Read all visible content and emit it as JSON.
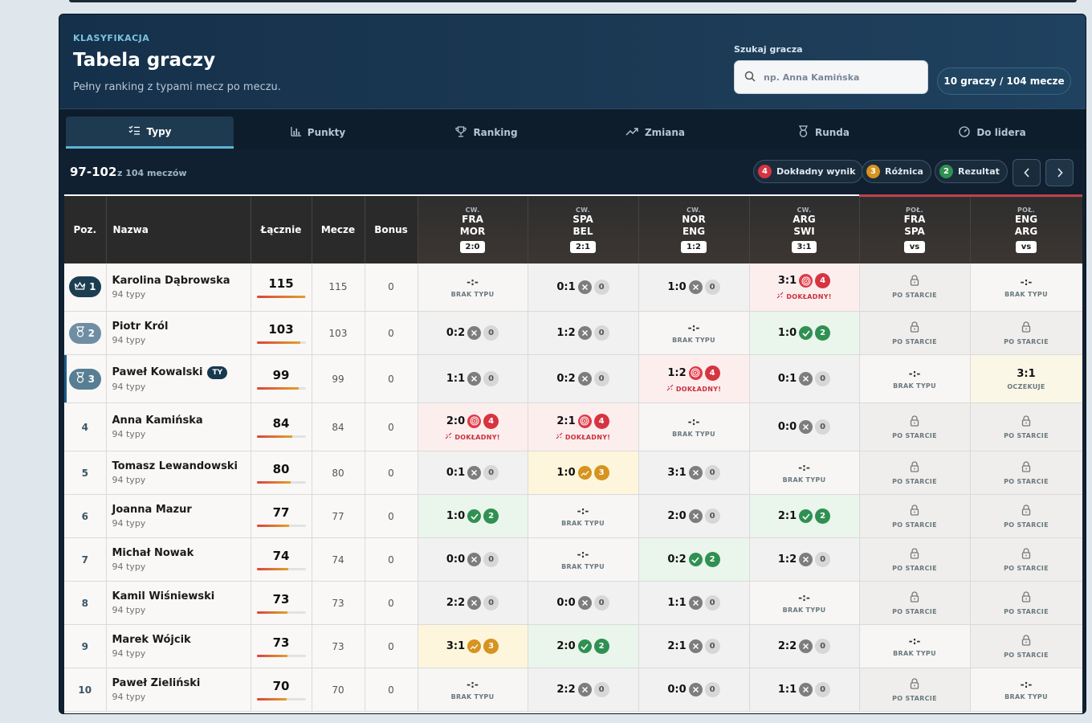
{
  "header": {
    "eyebrow": "KLASYFIKACJA",
    "title": "Tabela graczy",
    "subtitle": "Pełny ranking z typami mecz po meczu.",
    "search_label": "Szukaj gracza",
    "search_placeholder": "np. Anna Kamińska",
    "count_pill": "10 graczy / 104 mecze"
  },
  "tabs": [
    {
      "label": "Typy",
      "icon": "list-check-icon",
      "active": true
    },
    {
      "label": "Punkty",
      "icon": "bar-chart-icon",
      "active": false
    },
    {
      "label": "Ranking",
      "icon": "trophy-icon",
      "active": false
    },
    {
      "label": "Zmiana",
      "icon": "trend-icon",
      "active": false
    },
    {
      "label": "Runda",
      "icon": "medal-icon",
      "active": false
    },
    {
      "label": "Do lidera",
      "icon": "gauge-icon",
      "active": false
    }
  ],
  "range": {
    "value": "97-102",
    "suffix": "z 104 meczów"
  },
  "legend": [
    {
      "num": "4",
      "label": "Dokładny wynik",
      "color": "#d63441"
    },
    {
      "num": "3",
      "label": "Różnica",
      "color": "#d69320"
    },
    {
      "num": "2",
      "label": "Rezultat",
      "color": "#2f9052"
    }
  ],
  "columns": {
    "pos": "Poz.",
    "name": "Nazwa",
    "total": "Łącznie",
    "matches": "Mecze",
    "bonus": "Bonus"
  },
  "matches": [
    {
      "stage": "CW.",
      "home": "FRA",
      "away": "MOR",
      "score": "2:0",
      "half": false
    },
    {
      "stage": "CW.",
      "home": "SPA",
      "away": "BEL",
      "score": "2:1",
      "half": false
    },
    {
      "stage": "CW.",
      "home": "NOR",
      "away": "ENG",
      "score": "1:2",
      "half": false
    },
    {
      "stage": "CW.",
      "home": "ARG",
      "away": "SWI",
      "score": "3:1",
      "half": false
    },
    {
      "stage": "POŁ.",
      "home": "FRA",
      "away": "SPA",
      "score": "vs",
      "half": true
    },
    {
      "stage": "POŁ.",
      "home": "ENG",
      "away": "ARG",
      "score": "vs",
      "half": true
    }
  ],
  "labels": {
    "no_pick": "-:-",
    "no_pick_sub": "BRAK TYPU",
    "exact_sub": "DOKŁADNY!",
    "locked_sub": "PO STARCIE",
    "pending_sub": "OCZEKUJE"
  },
  "players": [
    {
      "pos": "1",
      "medal": "gold",
      "name": "Karolina Dąbrowska",
      "sub": "94 typy",
      "total": "115",
      "matches": "115",
      "bonus": "0",
      "bar": 0.99,
      "you": false,
      "picks": [
        {
          "t": "none"
        },
        {
          "t": "miss",
          "p": "0:1",
          "pts": "0"
        },
        {
          "t": "miss",
          "p": "1:0",
          "pts": "0"
        },
        {
          "t": "exact",
          "p": "3:1",
          "pts": "4"
        },
        {
          "t": "locked"
        },
        {
          "t": "none"
        }
      ]
    },
    {
      "pos": "2",
      "medal": "silver",
      "name": "Piotr Król",
      "sub": "94 typy",
      "total": "103",
      "matches": "103",
      "bonus": "0",
      "bar": 0.89,
      "you": false,
      "picks": [
        {
          "t": "miss",
          "p": "0:2",
          "pts": "0"
        },
        {
          "t": "miss",
          "p": "1:2",
          "pts": "0"
        },
        {
          "t": "none"
        },
        {
          "t": "res",
          "p": "1:0",
          "pts": "2"
        },
        {
          "t": "locked"
        },
        {
          "t": "locked"
        }
      ]
    },
    {
      "pos": "3",
      "medal": "bronze",
      "name": "Paweł Kowalski",
      "sub": "94 typy",
      "total": "99",
      "matches": "99",
      "bonus": "0",
      "bar": 0.86,
      "you": true,
      "you_label": "TY",
      "picks": [
        {
          "t": "miss",
          "p": "1:1",
          "pts": "0"
        },
        {
          "t": "miss",
          "p": "0:2",
          "pts": "0"
        },
        {
          "t": "exact",
          "p": "1:2",
          "pts": "4"
        },
        {
          "t": "miss",
          "p": "0:1",
          "pts": "0"
        },
        {
          "t": "none"
        },
        {
          "t": "pending",
          "p": "3:1"
        }
      ]
    },
    {
      "pos": "4",
      "medal": "",
      "name": "Anna Kamińska",
      "sub": "94 typy",
      "total": "84",
      "matches": "84",
      "bonus": "0",
      "bar": 0.73,
      "you": false,
      "picks": [
        {
          "t": "exact",
          "p": "2:0",
          "pts": "4"
        },
        {
          "t": "exact",
          "p": "2:1",
          "pts": "4"
        },
        {
          "t": "none"
        },
        {
          "t": "miss",
          "p": "0:0",
          "pts": "0"
        },
        {
          "t": "locked"
        },
        {
          "t": "locked"
        }
      ]
    },
    {
      "pos": "5",
      "medal": "",
      "name": "Tomasz Lewandowski",
      "sub": "94 typy",
      "total": "80",
      "matches": "80",
      "bonus": "0",
      "bar": 0.7,
      "you": false,
      "picks": [
        {
          "t": "miss",
          "p": "0:1",
          "pts": "0"
        },
        {
          "t": "diff",
          "p": "1:0",
          "pts": "3"
        },
        {
          "t": "miss",
          "p": "3:1",
          "pts": "0"
        },
        {
          "t": "none"
        },
        {
          "t": "locked"
        },
        {
          "t": "locked"
        }
      ]
    },
    {
      "pos": "6",
      "medal": "",
      "name": "Joanna Mazur",
      "sub": "94 typy",
      "total": "77",
      "matches": "77",
      "bonus": "0",
      "bar": 0.67,
      "you": false,
      "picks": [
        {
          "t": "res",
          "p": "1:0",
          "pts": "2"
        },
        {
          "t": "none"
        },
        {
          "t": "miss",
          "p": "2:0",
          "pts": "0"
        },
        {
          "t": "res",
          "p": "2:1",
          "pts": "2"
        },
        {
          "t": "locked"
        },
        {
          "t": "locked"
        }
      ]
    },
    {
      "pos": "7",
      "medal": "",
      "name": "Michał Nowak",
      "sub": "94 typy",
      "total": "74",
      "matches": "74",
      "bonus": "0",
      "bar": 0.64,
      "you": false,
      "picks": [
        {
          "t": "miss",
          "p": "0:0",
          "pts": "0"
        },
        {
          "t": "none"
        },
        {
          "t": "res",
          "p": "0:2",
          "pts": "2"
        },
        {
          "t": "miss",
          "p": "1:2",
          "pts": "0"
        },
        {
          "t": "locked"
        },
        {
          "t": "locked"
        }
      ]
    },
    {
      "pos": "8",
      "medal": "",
      "name": "Kamil Wiśniewski",
      "sub": "94 typy",
      "total": "73",
      "matches": "73",
      "bonus": "0",
      "bar": 0.63,
      "you": false,
      "picks": [
        {
          "t": "miss",
          "p": "2:2",
          "pts": "0"
        },
        {
          "t": "miss",
          "p": "0:0",
          "pts": "0"
        },
        {
          "t": "miss",
          "p": "1:1",
          "pts": "0"
        },
        {
          "t": "none"
        },
        {
          "t": "locked"
        },
        {
          "t": "locked"
        }
      ]
    },
    {
      "pos": "9",
      "medal": "",
      "name": "Marek Wójcik",
      "sub": "94 typy",
      "total": "73",
      "matches": "73",
      "bonus": "0",
      "bar": 0.63,
      "you": false,
      "picks": [
        {
          "t": "diff",
          "p": "3:1",
          "pts": "3"
        },
        {
          "t": "res",
          "p": "2:0",
          "pts": "2"
        },
        {
          "t": "miss",
          "p": "2:1",
          "pts": "0"
        },
        {
          "t": "miss",
          "p": "2:2",
          "pts": "0"
        },
        {
          "t": "none"
        },
        {
          "t": "locked"
        }
      ]
    },
    {
      "pos": "10",
      "medal": "",
      "name": "Paweł Zieliński",
      "sub": "94 typy",
      "total": "70",
      "matches": "70",
      "bonus": "0",
      "bar": 0.61,
      "you": false,
      "picks": [
        {
          "t": "none"
        },
        {
          "t": "miss",
          "p": "2:2",
          "pts": "0"
        },
        {
          "t": "miss",
          "p": "0:0",
          "pts": "0"
        },
        {
          "t": "miss",
          "p": "1:1",
          "pts": "0"
        },
        {
          "t": "locked"
        },
        {
          "t": "none"
        }
      ]
    }
  ]
}
